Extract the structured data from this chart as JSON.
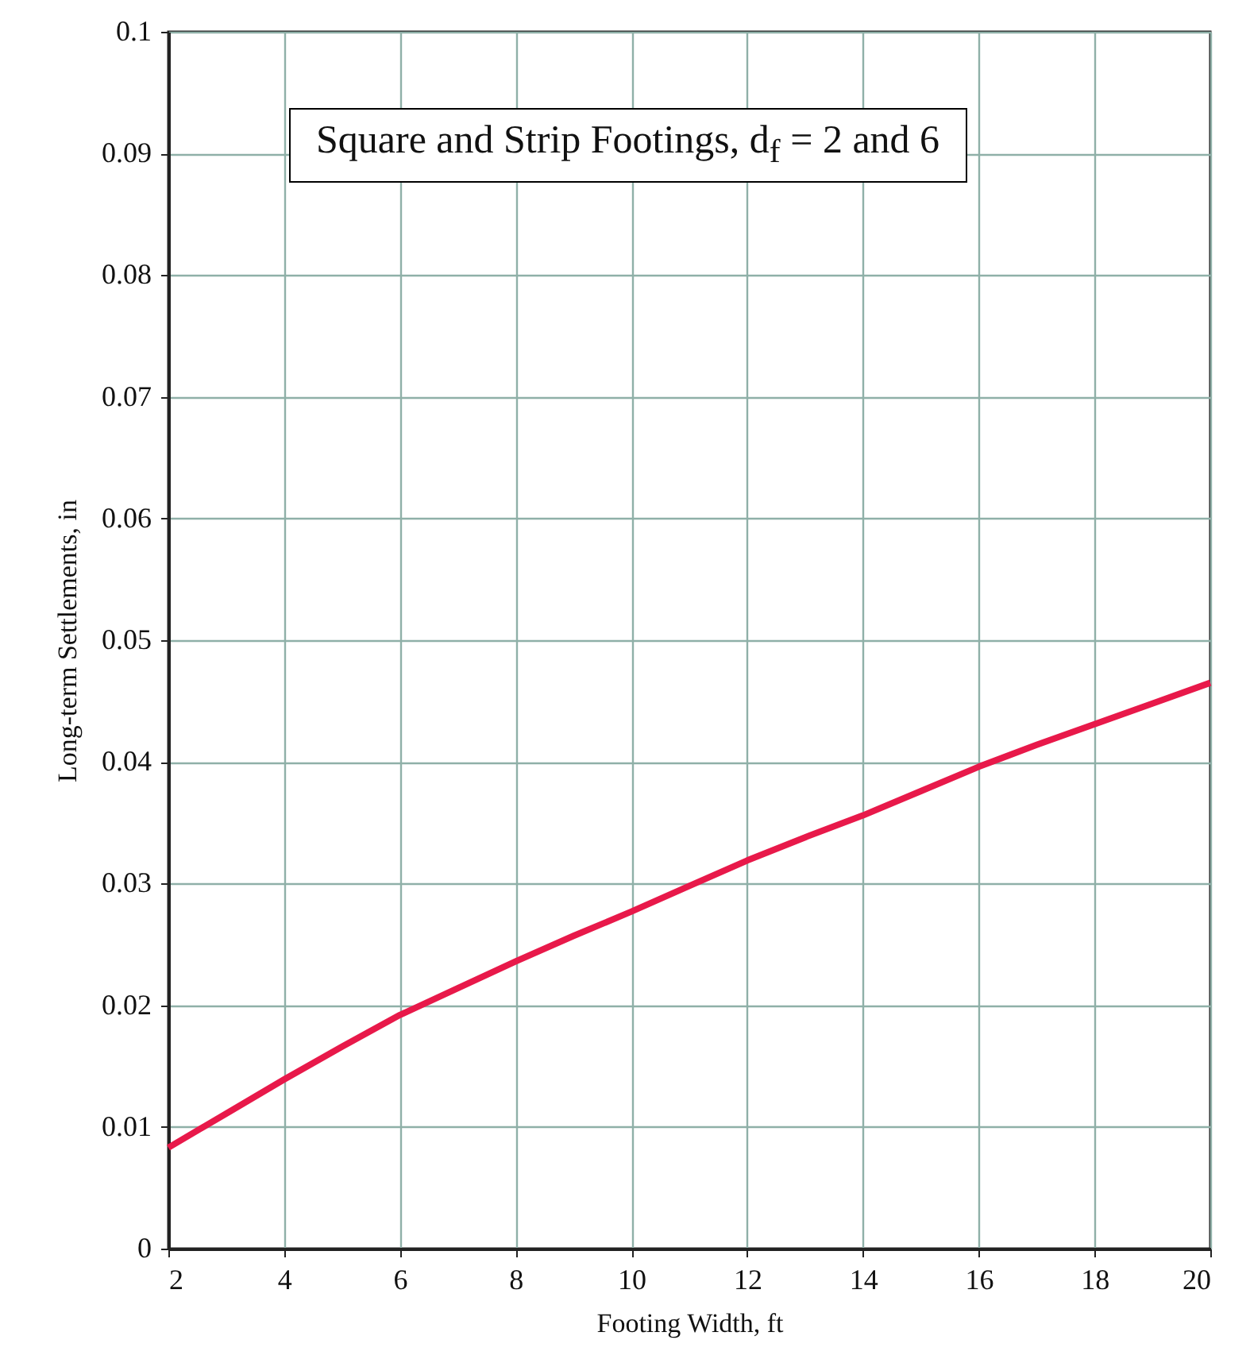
{
  "chart_data": {
    "type": "line",
    "title": "Square and Strip Footings, d$_{f}$ = 2 and 6",
    "xlabel": "Footing Width, ft",
    "ylabel": "Long-term Settlements, in",
    "x": [
      2,
      3,
      4,
      5,
      6,
      7,
      8,
      9,
      10,
      11,
      12,
      13,
      14,
      15,
      16,
      17,
      18,
      19,
      20
    ],
    "series": [
      {
        "color": "#e8194a",
        "values": [
          0.0083,
          0.0111,
          0.0139,
          0.0166,
          0.0192,
          0.0214,
          0.0236,
          0.0257,
          0.0277,
          0.0298,
          0.0319,
          0.0338,
          0.0356,
          0.0376,
          0.0396,
          0.0414,
          0.0431,
          0.0448,
          0.0465
        ]
      }
    ],
    "xlim": [
      2,
      20
    ],
    "xticks": [
      2,
      4,
      6,
      8,
      10,
      12,
      14,
      16,
      18,
      20
    ],
    "ylim": [
      0,
      0.1
    ],
    "yticks": [
      0,
      0.01,
      0.02,
      0.03,
      0.04,
      0.05,
      0.06,
      0.07,
      0.08,
      0.09,
      0.1
    ],
    "grid": true
  }
}
